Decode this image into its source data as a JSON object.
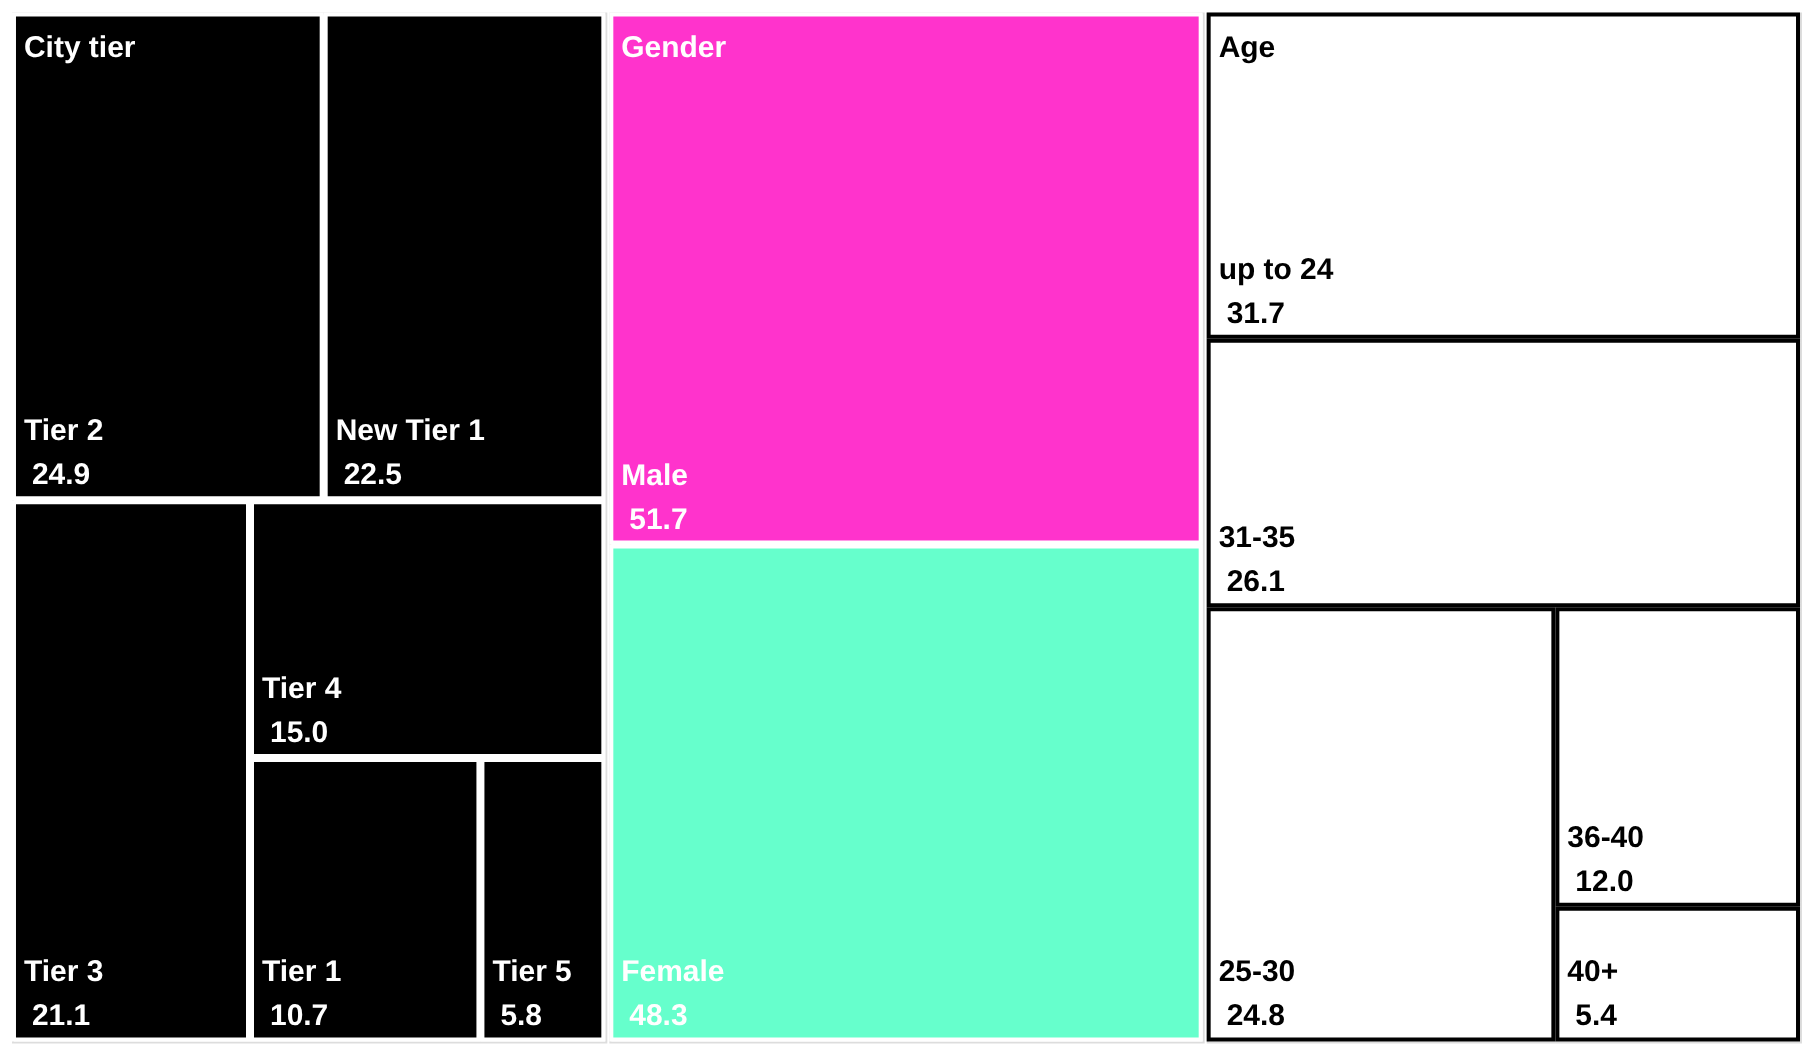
{
  "chart_data": [
    {
      "type": "other",
      "title": "City tier",
      "categories": [
        "Tier 2",
        "New Tier 1",
        "Tier 3",
        "Tier 4",
        "Tier 1",
        "Tier 5"
      ],
      "values": [
        24.9,
        22.5,
        21.1,
        15.0,
        10.7,
        5.8
      ],
      "value_labels": [
        "24.9",
        "22.5",
        "21.1",
        "15.0",
        "10.7",
        "5.8"
      ],
      "colors": [
        "#000000",
        "#000000",
        "#000000",
        "#000000",
        "#000000",
        "#000000"
      ]
    },
    {
      "type": "other",
      "title": "Gender",
      "categories": [
        "Male",
        "Female"
      ],
      "values": [
        51.7,
        48.3
      ],
      "value_labels": [
        "51.7",
        "48.3"
      ],
      "colors": [
        "#ff33cc",
        "#66ffcc"
      ]
    },
    {
      "type": "other",
      "title": "Age",
      "categories": [
        "up to 24",
        "31-35",
        "25-30",
        "36-40",
        "40+"
      ],
      "values": [
        31.7,
        26.1,
        24.8,
        12.0,
        5.4
      ],
      "value_labels": [
        "31.7",
        "26.1",
        "24.8",
        "12.0",
        "5.4"
      ],
      "colors": [
        "#ffffff",
        "#ffffff",
        "#ffffff",
        "#ffffff",
        "#ffffff"
      ]
    }
  ]
}
